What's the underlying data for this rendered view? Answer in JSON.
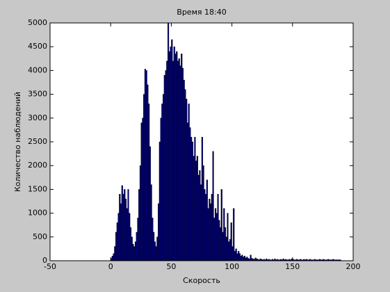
{
  "chart_data": {
    "type": "histogram",
    "title": "Время 18:40",
    "x_label": "Скорость",
    "y_label": "Количество наблюдений",
    "color": "#00007f",
    "grid": false,
    "xlim": [
      -50,
      200
    ],
    "xticks": [
      -50,
      0,
      50,
      100,
      150,
      200
    ],
    "ylim": [
      0,
      5000
    ],
    "yticks": [
      0,
      500,
      1000,
      1500,
      2000,
      2500,
      3000,
      3500,
      4000,
      4500,
      5000
    ],
    "bins": [
      0,
      1,
      2,
      3,
      4,
      5,
      6,
      7,
      8,
      9,
      10,
      11,
      12,
      13,
      14,
      15,
      16,
      17,
      18,
      19,
      20,
      21,
      22,
      23,
      24,
      25,
      26,
      27,
      28,
      29,
      30,
      31,
      32,
      33,
      34,
      35,
      36,
      37,
      38,
      39,
      40,
      41,
      42,
      43,
      44,
      45,
      46,
      47,
      48,
      49,
      50,
      51,
      52,
      53,
      54,
      55,
      56,
      57,
      58,
      59,
      60,
      61,
      62,
      63,
      64,
      65,
      66,
      67,
      68,
      69,
      70,
      71,
      72,
      73,
      74,
      75,
      76,
      77,
      78,
      79,
      80,
      81,
      82,
      83,
      84,
      85,
      86,
      87,
      88,
      89,
      90,
      91,
      92,
      93,
      94,
      95,
      96,
      97,
      98,
      99,
      100,
      101,
      102,
      103,
      104,
      105,
      106,
      107,
      108,
      109,
      110,
      111,
      112,
      113,
      114,
      115,
      116,
      117,
      118,
      119,
      120,
      121,
      122,
      123,
      124,
      125,
      126,
      127,
      128,
      129,
      130,
      131,
      132,
      133,
      134,
      135,
      136,
      137,
      138,
      139,
      140,
      141,
      142,
      143,
      144,
      145,
      146,
      147,
      148,
      149,
      150,
      151,
      152,
      153,
      154,
      155,
      156,
      157,
      158,
      159,
      160,
      161,
      162,
      163,
      164,
      165,
      166,
      167,
      168,
      169,
      170,
      171,
      172,
      173,
      174,
      175,
      176,
      177,
      178,
      179,
      180,
      181,
      182,
      183,
      184,
      185,
      186,
      187,
      188,
      189,
      190
    ],
    "values": [
      50,
      100,
      150,
      300,
      600,
      800,
      1000,
      1400,
      1200,
      1580,
      1400,
      1500,
      1300,
      1100,
      1500,
      1000,
      700,
      500,
      350,
      300,
      400,
      600,
      900,
      1500,
      2000,
      2900,
      3000,
      3500,
      4030,
      4000,
      3700,
      3300,
      2400,
      1600,
      900,
      600,
      400,
      300,
      500,
      1200,
      2500,
      3000,
      3300,
      3500,
      3900,
      4000,
      4200,
      5000,
      4400,
      4500,
      4650,
      4200,
      4500,
      4350,
      4400,
      4200,
      4250,
      4100,
      4350,
      4050,
      3800,
      3600,
      3400,
      2900,
      3300,
      2800,
      2600,
      2500,
      2200,
      2600,
      2100,
      2200,
      1800,
      1900,
      1600,
      2600,
      2000,
      1500,
      1400,
      1700,
      1100,
      1300,
      1200,
      1400,
      2300,
      900,
      1100,
      1000,
      1400,
      850,
      700,
      1500,
      600,
      1100,
      700,
      500,
      1000,
      400,
      450,
      800,
      300,
      1100,
      200,
      250,
      150,
      200,
      150,
      100,
      120,
      80,
      100,
      60,
      80,
      50,
      40,
      120,
      50,
      40,
      30,
      60,
      40,
      30,
      20,
      40,
      30,
      20,
      30,
      20,
      40,
      20,
      30,
      20,
      20,
      30,
      20,
      40,
      20,
      30,
      20,
      20,
      30,
      20,
      40,
      20,
      30,
      20,
      20,
      30,
      20,
      40,
      30,
      20,
      20,
      30,
      20,
      20,
      30,
      20,
      20,
      30,
      20,
      30,
      20,
      20,
      30,
      20,
      20,
      20,
      30,
      20,
      20,
      20,
      30,
      20,
      20,
      30,
      20,
      20,
      20,
      30,
      20,
      20,
      20,
      30,
      20,
      20,
      20,
      20,
      20,
      20
    ]
  }
}
